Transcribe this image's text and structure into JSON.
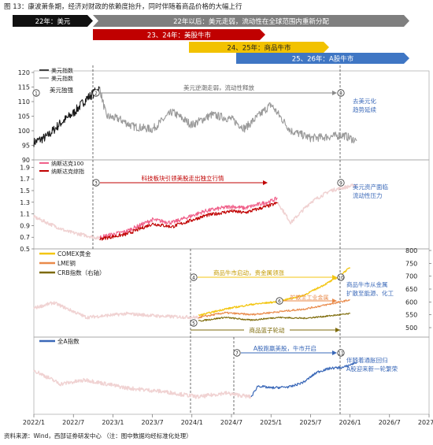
{
  "figure": {
    "title": "图 13：康波萧条期，经济对财政的依赖度抬升，同时伴随着商品价格的大幅上行",
    "source": "资料来源：Wind，西部证券研发中心 （注：图中数据均经标准化处理）",
    "colors": {
      "black": "#1a1a1a",
      "gray": "#9a9a9a",
      "red": "#c00000",
      "pink": "#f0608a",
      "yellow": "#f3c613",
      "orange": "#e98a4a",
      "olive": "#7d6a08",
      "blue": "#3a68b8",
      "faint": "#f0d2d2"
    }
  },
  "chart_data": [
    {
      "type": "timeline",
      "phases": [
        {
          "label": "22年：美元",
          "start": "2022/1",
          "end": "2022/11",
          "color": "#111111"
        },
        {
          "label": "22年以后：美元走弱，流动性在全球范围内重新分配",
          "start": "2022/11",
          "end": "2026/6",
          "color": "#7f7f7f"
        },
        {
          "label": "23、24年：美股牛市",
          "start": "2022/11",
          "end": "2025/4",
          "color": "#c00000"
        },
        {
          "label": "24、25年：商品牛市",
          "start": "2024/5",
          "end": "2026/2",
          "color": "#f2c200"
        },
        {
          "label": "25、26年：A股牛市",
          "start": "2024/10",
          "end": "2026/6",
          "color": "#3f76c4"
        }
      ]
    },
    {
      "type": "line",
      "legend": [
        "美元指数",
        "美元指数"
      ],
      "ylim": [
        90,
        120
      ],
      "yticks": [
        90,
        95,
        100,
        105,
        110,
        115,
        120
      ],
      "series": [
        {
          "name": "美元指数",
          "color": "#1a1a1a",
          "points": [
            [
              "2022/1",
              96
            ],
            [
              "2022/3",
              98
            ],
            [
              "2022/5",
              102.5
            ],
            [
              "2022/7",
              106
            ],
            [
              "2022/9",
              111
            ],
            [
              "2022/11",
              114.5
            ]
          ]
        },
        {
          "name": "美元指数",
          "color": "#9a9a9a",
          "points": [
            [
              "2022/11",
              114.5
            ],
            [
              "2022/12",
              105
            ],
            [
              "2023/2",
              104
            ],
            [
              "2023/4",
              101.5
            ],
            [
              "2023/7",
              100.5
            ],
            [
              "2023/10",
              106.5
            ],
            [
              "2024/1",
              102
            ],
            [
              "2024/4",
              105.5
            ],
            [
              "2024/7",
              104
            ],
            [
              "2024/9",
              100.8
            ],
            [
              "2025/1",
              109
            ],
            [
              "2025/4",
              100
            ],
            [
              "2025/7",
              97.5
            ],
            [
              "2025/9",
              97.8
            ],
            [
              "2025/12",
              98.5
            ],
            [
              "2026/2",
              96.5
            ]
          ]
        }
      ],
      "annotations": [
        {
          "marker": "1",
          "text": "美元独强",
          "at": "2022/1",
          "y": 114
        },
        {
          "marker": "2",
          "text": "美元逆潮走弱，流动性释放",
          "at": "2022/11",
          "y": 114
        },
        {
          "marker": "8",
          "text": "去美元化\n趋势延续",
          "at": "2026/2",
          "y": 114
        }
      ]
    },
    {
      "type": "line",
      "legend": [
        "纳斯达克100",
        "纳斯达克综指"
      ],
      "ylim": [
        0.5,
        2.0
      ],
      "yticks": [
        0.5,
        0.7,
        0.9,
        1.1,
        1.3,
        1.5,
        1.7,
        1.9
      ],
      "series": [
        {
          "name": "纳斯达克100",
          "color": "#f0608a",
          "points": [
            [
              "2022/11",
              0.7
            ],
            [
              "2023/3",
              0.8
            ],
            [
              "2023/7",
              1.0
            ],
            [
              "2023/10",
              0.95
            ],
            [
              "2024/3",
              1.15
            ],
            [
              "2024/7",
              1.23
            ],
            [
              "2024/9",
              1.2
            ],
            [
              "2025/1",
              1.32
            ],
            [
              "2025/2",
              1.37
            ]
          ]
        },
        {
          "name": "纳斯达克综指",
          "color": "#c00000",
          "points": [
            [
              "2022/11",
              0.67
            ],
            [
              "2023/3",
              0.75
            ],
            [
              "2023/7",
              0.93
            ],
            [
              "2023/10",
              0.88
            ],
            [
              "2024/3",
              1.07
            ],
            [
              "2024/7",
              1.15
            ],
            [
              "2024/9",
              1.12
            ],
            [
              "2025/1",
              1.25
            ],
            [
              "2025/2",
              1.29
            ]
          ]
        }
      ],
      "annotations": [
        {
          "marker": "3",
          "text": "科技板块引领美股走出独立行情",
          "at": "2022/11",
          "y": 1.5
        },
        {
          "marker": "9",
          "text": "美元资产面临\n流动性压力",
          "at": "2026/2",
          "y": 1.5
        }
      ]
    },
    {
      "type": "line",
      "legend": [
        "COMEX黄金",
        "LME铜",
        "CRB指数（右轴）"
      ],
      "ylim": [
        0,
        5
      ],
      "y2lim": [
        500,
        800
      ],
      "y2ticks": [
        500,
        550,
        600,
        650,
        700,
        750,
        800
      ],
      "series": [
        {
          "name": "COMEX黄金",
          "color": "#f3c613",
          "points": [
            [
              "2024/2",
              0.4
            ],
            [
              "2024/6",
              0.75
            ],
            [
              "2024/10",
              1.0
            ],
            [
              "2025/2",
              1.15
            ],
            [
              "2025/6",
              1.5
            ],
            [
              "2025/9",
              2.05
            ],
            [
              "2025/11",
              2.45
            ],
            [
              "2026/1",
              3.0
            ]
          ]
        },
        {
          "name": "LME铜",
          "color": "#e98a4a",
          "points": [
            [
              "2024/2",
              0.3
            ],
            [
              "2024/6",
              0.55
            ],
            [
              "2024/10",
              0.45
            ],
            [
              "2025/2",
              0.6
            ],
            [
              "2025/6",
              0.75
            ],
            [
              "2025/9",
              0.95
            ],
            [
              "2026/1",
              1.25
            ]
          ]
        },
        {
          "name": "CRB指数（右轴）",
          "color": "#7d6a08",
          "points": [
            [
              "2024/2",
              0.1
            ],
            [
              "2024/6",
              0.3
            ],
            [
              "2024/10",
              0.15
            ],
            [
              "2025/2",
              0.3
            ],
            [
              "2025/6",
              0.25
            ],
            [
              "2025/9",
              0.35
            ],
            [
              "2026/1",
              0.5
            ]
          ]
        }
      ],
      "annotations": [
        {
          "marker": "4",
          "text": "商品牛市启动，贵金属领涨",
          "at": "2024/2",
          "y": 2.5
        },
        {
          "marker": "6",
          "text": "扩散至工业金属",
          "at": "2025/6",
          "y": 1.8
        },
        {
          "marker": "5",
          "text": "商品蓝子轮动",
          "at": "2024/2",
          "y": -0.3
        },
        {
          "marker": "10",
          "text": "商品牛市从金属\n扩散至能源、化工",
          "at": "2026/2",
          "y": 2.5
        }
      ]
    },
    {
      "type": "line",
      "legend": [
        "全A指数"
      ],
      "xticks": [
        "2022/1",
        "2022/7",
        "2023/1",
        "2023/7",
        "2024/1",
        "2024/7",
        "2025/1",
        "2025/7",
        "2026/1",
        "2026/7",
        "2027/1"
      ],
      "series": [
        {
          "name": "全A指数",
          "color": "#3a68b8",
          "points": [
            [
              "2024/10",
              0.12
            ],
            [
              "2024/11",
              0.4
            ],
            [
              "2025/1",
              0.35
            ],
            [
              "2025/4",
              0.38
            ],
            [
              "2025/6",
              0.5
            ],
            [
              "2025/8",
              0.75
            ],
            [
              "2025/10",
              0.85
            ],
            [
              "2025/12",
              0.87
            ],
            [
              "2026/2",
              1.0
            ]
          ]
        }
      ],
      "annotations": [
        {
          "marker": "7",
          "text": "A股跑赢美股，牛市开启",
          "at": "2024/10",
          "y": 1.4
        },
        {
          "marker": "11",
          "text": "伴随着通胀回归\nA股迎来新一轮繁荣",
          "at": "2026/2",
          "y": 1.4
        }
      ]
    }
  ]
}
